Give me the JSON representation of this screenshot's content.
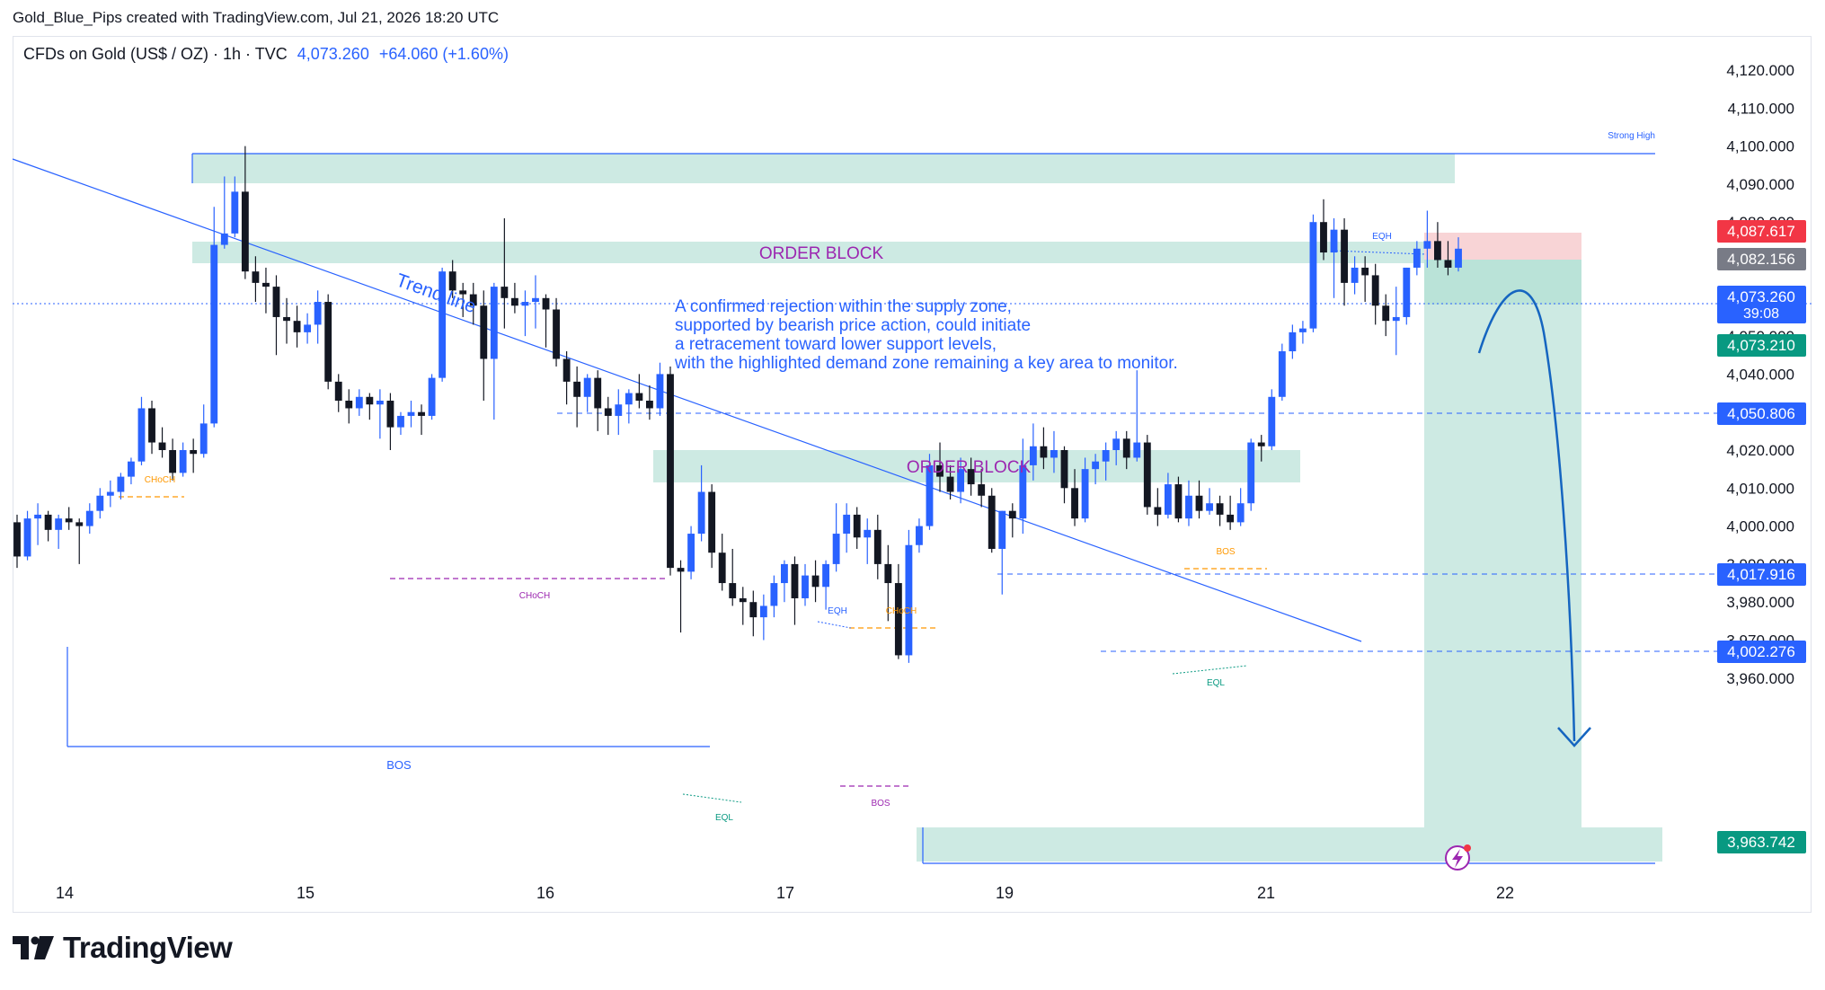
{
  "header": {
    "attribution": "Gold_Blue_Pips created with TradingView.com, Jul 21, 2026 18:20 UTC",
    "symbol": "CFDs on Gold (US$ / OZ) · 1h · TVC",
    "last_price": "4,073.260",
    "change": "+64.060 (+1.60%)"
  },
  "brand": {
    "name": "TradingView",
    "icon": "tradingview-logo-icon"
  },
  "colors": {
    "bull": "#2962ff",
    "bear": "#131722",
    "zone": "#cdeae3",
    "blue_line": "#2962ff",
    "red_label": "#f23645",
    "green_label": "#089981",
    "annotation_text": "#2962ff",
    "order_block_text": "#9c27b0"
  },
  "chart_data": {
    "type": "candlestick",
    "y_axis": {
      "ticks": [
        "4,120.000",
        "4,110.000",
        "4,100.000",
        "4,090.000",
        "4,080.000",
        "4,070.000",
        "4,060.000",
        "4,050.000",
        "4,040.000",
        "4,030.000",
        "4,020.000",
        "4,010.000",
        "4,000.000",
        "3,990.000",
        "3,980.000",
        "3,970.000",
        "3,960.000"
      ],
      "range": [
        3957,
        4125
      ]
    },
    "x_axis": {
      "ticks": [
        "14",
        "15",
        "16",
        "17",
        "19",
        "21",
        "22"
      ]
    },
    "price_labels": [
      {
        "value": "4,087.617",
        "style": "red"
      },
      {
        "value": "4,082.156",
        "style": "gray"
      },
      {
        "value": "4,073.260",
        "sub": "39:08",
        "style": "blue"
      },
      {
        "value": "4,073.210",
        "style": "green"
      },
      {
        "value": "4,050.806",
        "style": "blue"
      },
      {
        "value": "4,017.916",
        "style": "blue"
      },
      {
        "value": "4,002.276",
        "style": "blue"
      },
      {
        "value": "3,963.742",
        "style": "green"
      }
    ],
    "annotations": {
      "strong_high": "Strong High",
      "trend_line": "Trend line",
      "order_block_1": "ORDER BLOCK",
      "order_block_2": "ORDER BLOCK",
      "analysis": [
        "A confirmed rejection within the supply zone,",
        "supported by bearish price action, could initiate",
        "a retracement toward lower support levels,",
        "with the highlighted demand zone remaining a key area to monitor."
      ],
      "choch_1": "CHoCH",
      "choch_2": "CHoCH",
      "choch_3": "CHoCH",
      "bos_1": "BOS",
      "bos_2": "BOS",
      "bos_3": "BOS",
      "eqh_1": "EQH",
      "eqh_2": "EQH",
      "eql_1": "EQL",
      "eql_2": "EQL"
    },
    "candles": [
      [
        4001,
        4003,
        3989,
        3992
      ],
      [
        3992,
        4004,
        3991,
        4002
      ],
      [
        4002,
        4006,
        3995,
        4003
      ],
      [
        4003,
        4004,
        3996,
        3999
      ],
      [
        3999,
        4003,
        3994,
        4002
      ],
      [
        4002,
        4005,
        3999,
        4001
      ],
      [
        4001,
        4002,
        3990,
        4000
      ],
      [
        4000,
        4006,
        3998,
        4004
      ],
      [
        4004,
        4010,
        4002,
        4008
      ],
      [
        4008,
        4012,
        4005,
        4009
      ],
      [
        4009,
        4014,
        4007,
        4013
      ],
      [
        4013,
        4018,
        4011,
        4017
      ],
      [
        4017,
        4034,
        4016,
        4031
      ],
      [
        4031,
        4033,
        4019,
        4022
      ],
      [
        4022,
        4026,
        4018,
        4020
      ],
      [
        4020,
        4023,
        4012,
        4014
      ],
      [
        4014,
        4022,
        4013,
        4020
      ],
      [
        4020,
        4023,
        4014,
        4019
      ],
      [
        4019,
        4032,
        4018,
        4027
      ],
      [
        4027,
        4084,
        4026,
        4074
      ],
      [
        4074,
        4092,
        4073,
        4077
      ],
      [
        4077,
        4092,
        4076,
        4088
      ],
      [
        4088,
        4100,
        4065,
        4067
      ],
      [
        4067,
        4071,
        4059,
        4064
      ],
      [
        4064,
        4068,
        4056,
        4063
      ],
      [
        4063,
        4066,
        4045,
        4055
      ],
      [
        4055,
        4060,
        4048,
        4054
      ],
      [
        4054,
        4058,
        4047,
        4051
      ],
      [
        4051,
        4056,
        4048,
        4053
      ],
      [
        4053,
        4062,
        4048,
        4059
      ],
      [
        4059,
        4061,
        4036,
        4038
      ],
      [
        4038,
        4040,
        4030,
        4033
      ],
      [
        4033,
        4036,
        4027,
        4031
      ],
      [
        4031,
        4036,
        4029,
        4034
      ],
      [
        4034,
        4035,
        4028,
        4032
      ],
      [
        4032,
        4036,
        4023,
        4033
      ],
      [
        4033,
        4035,
        4020,
        4026
      ],
      [
        4026,
        4030,
        4024,
        4029
      ],
      [
        4029,
        4033,
        4026,
        4030
      ],
      [
        4030,
        4032,
        4024,
        4029
      ],
      [
        4029,
        4040,
        4028,
        4039
      ],
      [
        4039,
        4068,
        4038,
        4067
      ],
      [
        4067,
        4070,
        4060,
        4062
      ],
      [
        4062,
        4064,
        4055,
        4061
      ],
      [
        4061,
        4064,
        4053,
        4058
      ],
      [
        4058,
        4062,
        4033,
        4044
      ],
      [
        4044,
        4064,
        4028,
        4063
      ],
      [
        4063,
        4081,
        4052,
        4060
      ],
      [
        4060,
        4064,
        4056,
        4058
      ],
      [
        4058,
        4062,
        4050,
        4059
      ],
      [
        4059,
        4066,
        4052,
        4060
      ],
      [
        4060,
        4061,
        4047,
        4057
      ],
      [
        4057,
        4060,
        4042,
        4044
      ],
      [
        4044,
        4046,
        4032,
        4038
      ],
      [
        4038,
        4042,
        4026,
        4034
      ],
      [
        4034,
        4040,
        4030,
        4039
      ],
      [
        4039,
        4041,
        4025,
        4031
      ],
      [
        4031,
        4034,
        4024,
        4029
      ],
      [
        4029,
        4036,
        4024,
        4032
      ],
      [
        4032,
        4036,
        4027,
        4035
      ],
      [
        4035,
        4040,
        4031,
        4033
      ],
      [
        4033,
        4037,
        4028,
        4031
      ],
      [
        4031,
        4043,
        4029,
        4040
      ],
      [
        4040,
        4042,
        3987,
        3989
      ],
      [
        3989,
        3991,
        3972,
        3988
      ],
      [
        3988,
        4000,
        3986,
        3998
      ],
      [
        3998,
        4016,
        3996,
        4009
      ],
      [
        4009,
        4011,
        3989,
        3993
      ],
      [
        3993,
        3998,
        3983,
        3985
      ],
      [
        3985,
        3994,
        3979,
        3981
      ],
      [
        3981,
        3984,
        3974,
        3980
      ],
      [
        3980,
        3983,
        3971,
        3976
      ],
      [
        3976,
        3982,
        3970,
        3979
      ],
      [
        3979,
        3987,
        3976,
        3985
      ],
      [
        3985,
        3991,
        3980,
        3990
      ],
      [
        3990,
        3992,
        3974,
        3981
      ],
      [
        3981,
        3990,
        3979,
        3987
      ],
      [
        3987,
        3991,
        3980,
        3984
      ],
      [
        3984,
        3991,
        3978,
        3990
      ],
      [
        3990,
        4006,
        3988,
        3998
      ],
      [
        3998,
        4006,
        3993,
        4003
      ],
      [
        4003,
        4005,
        3994,
        3997
      ],
      [
        3997,
        4002,
        3990,
        3999
      ],
      [
        3999,
        4003,
        3986,
        3990
      ],
      [
        3990,
        3995,
        3975,
        3985
      ],
      [
        3985,
        3990,
        3965,
        3966
      ],
      [
        3966,
        3999,
        3964,
        3995
      ],
      [
        3995,
        4002,
        3993,
        4000
      ],
      [
        4000,
        4019,
        3999,
        4016
      ],
      [
        4016,
        4022,
        4009,
        4013
      ],
      [
        4013,
        4016,
        4007,
        4009
      ],
      [
        4009,
        4018,
        4006,
        4015
      ],
      [
        4015,
        4018,
        4008,
        4011
      ],
      [
        4011,
        4015,
        4005,
        4008
      ],
      [
        4008,
        4010,
        3993,
        3994
      ],
      [
        3994,
        4004,
        3982,
        4004
      ],
      [
        4004,
        4006,
        3997,
        4002
      ],
      [
        4002,
        4023,
        3998,
        4016
      ],
      [
        4016,
        4027,
        4012,
        4021
      ],
      [
        4021,
        4026,
        4015,
        4018
      ],
      [
        4018,
        4025,
        4014,
        4020
      ],
      [
        4020,
        4021,
        4006,
        4010
      ],
      [
        4010,
        4015,
        4000,
        4002
      ],
      [
        4002,
        4018,
        4001,
        4015
      ],
      [
        4015,
        4019,
        4011,
        4017
      ],
      [
        4017,
        4022,
        4012,
        4020
      ],
      [
        4020,
        4025,
        4016,
        4023
      ],
      [
        4023,
        4025,
        4015,
        4018
      ],
      [
        4018,
        4041,
        4017,
        4022
      ],
      [
        4022,
        4024,
        4003,
        4005
      ],
      [
        4005,
        4010,
        4000,
        4003
      ],
      [
        4003,
        4014,
        4002,
        4011
      ],
      [
        4011,
        4013,
        4001,
        4002
      ],
      [
        4002,
        4012,
        4000,
        4008
      ],
      [
        4008,
        4012,
        4002,
        4004
      ],
      [
        4004,
        4010,
        4003,
        4006
      ],
      [
        4006,
        4008,
        4000,
        4003
      ],
      [
        4003,
        4008,
        3999,
        4001
      ],
      [
        4001,
        4010,
        4000,
        4006
      ],
      [
        4006,
        4023,
        4004,
        4022
      ],
      [
        4022,
        4024,
        4017,
        4021
      ],
      [
        4021,
        4036,
        4020,
        4034
      ],
      [
        4034,
        4048,
        4033,
        4046
      ],
      [
        4046,
        4053,
        4044,
        4051
      ],
      [
        4051,
        4054,
        4048,
        4052
      ],
      [
        4052,
        4082,
        4051,
        4080
      ],
      [
        4080,
        4086,
        4070,
        4072
      ],
      [
        4072,
        4081,
        4060,
        4078
      ],
      [
        4078,
        4081,
        4058,
        4064
      ],
      [
        4064,
        4071,
        4061,
        4068
      ],
      [
        4068,
        4071,
        4059,
        4066
      ],
      [
        4066,
        4069,
        4053,
        4058
      ],
      [
        4058,
        4061,
        4050,
        4054
      ],
      [
        4054,
        4063,
        4045,
        4055
      ],
      [
        4055,
        4068,
        4053,
        4068
      ],
      [
        4068,
        4075,
        4066,
        4073
      ],
      [
        4073,
        4083,
        4068,
        4075
      ],
      [
        4075,
        4080,
        4068,
        4070
      ],
      [
        4070,
        4075,
        4066,
        4068
      ],
      [
        4068,
        4076,
        4067,
        4073
      ]
    ]
  }
}
